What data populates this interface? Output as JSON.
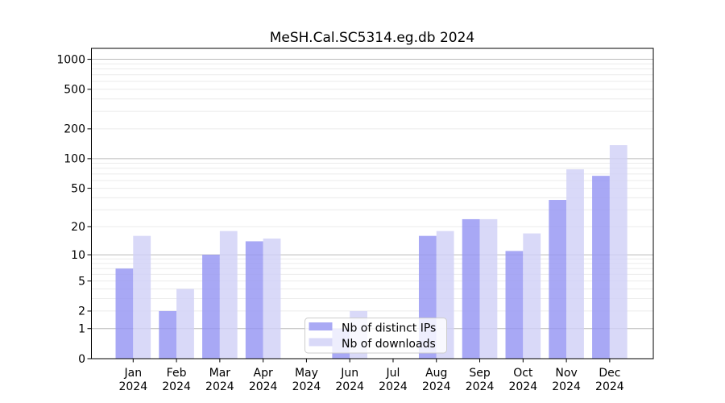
{
  "chart_data": {
    "type": "bar",
    "title": "MeSH.Cal.SC5314.eg.db 2024",
    "categories": [
      "Jan",
      "Feb",
      "Mar",
      "Apr",
      "May",
      "Jun",
      "Jul",
      "Aug",
      "Sep",
      "Oct",
      "Nov",
      "Dec"
    ],
    "x_tick_second_line": "2024",
    "series": [
      {
        "name": "Nb of distinct IPs",
        "color": "#9595f3",
        "legend_color": "#a9a9f4",
        "values": [
          7,
          2,
          10,
          14,
          0,
          1,
          0,
          16,
          24,
          11,
          38,
          67
        ]
      },
      {
        "name": "Nb of downloads",
        "color": "#d1d1f7",
        "legend_color": "#d9d9f8",
        "values": [
          16,
          4,
          18,
          15,
          0,
          2,
          0,
          18,
          24,
          17,
          78,
          137
        ]
      }
    ],
    "xlabel": "",
    "ylabel": "",
    "y_scale": "log10(1+x)",
    "y_ticks": [
      0,
      1,
      2,
      5,
      10,
      20,
      50,
      100,
      200,
      500,
      1000
    ],
    "ylim": [
      0,
      1288
    ],
    "grid": "on",
    "legend_position": "lower-center"
  },
  "colors": {
    "background": "#ffffff",
    "axis": "#000000",
    "major_grid": "#bbbbbb",
    "minor_grid": "#ebebeb",
    "legend_border": "#cccccc",
    "legend_fill": "#ffffff"
  }
}
